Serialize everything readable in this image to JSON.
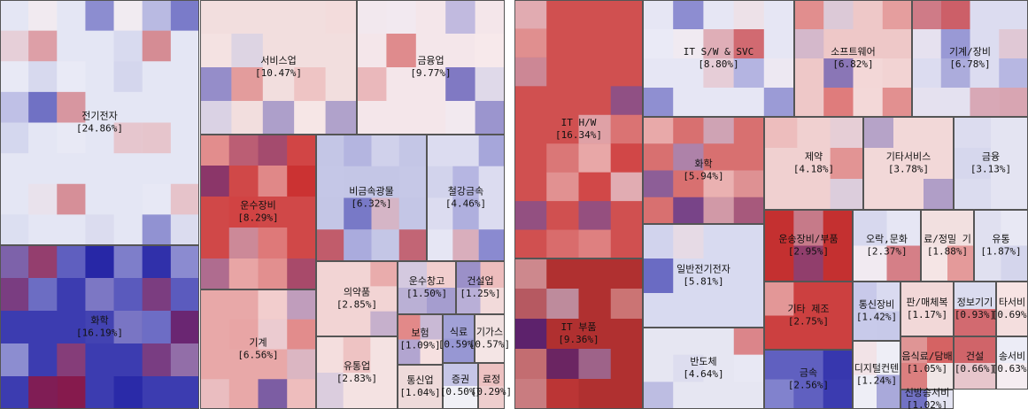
{
  "chart_data": [
    {
      "type": "treemap",
      "categories": [
        "전기전자",
        "화학",
        "서비스업",
        "금융업",
        "운수장비",
        "비금속광물",
        "철강금속",
        "기계",
        "의약품",
        "유통업",
        "운수창고",
        "건설업",
        "보험",
        "통신업",
        "식료",
        "기가스",
        "증권",
        "료정"
      ],
      "values": [
        24.86,
        16.19,
        10.47,
        9.77,
        8.29,
        6.32,
        4.46,
        6.56,
        2.85,
        2.83,
        1.5,
        1.25,
        1.09,
        1.04,
        0.59,
        0.57,
        0.5,
        0.29
      ],
      "value_labels": [
        "[24.86%]",
        "[16.19%]",
        "[10.47%]",
        "[9.77%]",
        "[8.29%]",
        "[6.32%]",
        "[4.46%]",
        "[6.56%]",
        "[2.85%]",
        "[2.83%]",
        "[1.50%]",
        "[1.25%]",
        "[1.09%]",
        "[1.04%]",
        "[0.59%]",
        "[0.57%]",
        "[0.50%]",
        "[0.29%]"
      ],
      "colors": [
        "#e4e6f4",
        "#3c3cb0",
        "#f2dede",
        "#f4e6ea",
        "#d04848",
        "#c4c6e6",
        "#dcdcf0",
        "#e8a8a8",
        "#f2d4d4",
        "#f4e2e2",
        "#f6e6e6",
        "#f2dada",
        "#f6e0e0",
        "#eedada",
        "#e8e8f2",
        "#f0e0e0",
        "#f0f0f6",
        "#f2e4e4"
      ]
    },
    {
      "type": "treemap",
      "categories": [
        "IT H/W",
        "IT 부품",
        "IT S/W & SVC",
        "소프트웨어",
        "기계/장비",
        "화학",
        "일반전기전자",
        "반도체",
        "제약",
        "기타서비스",
        "금융",
        "운송장비/부품",
        "오락,문화",
        "료/정밀 기",
        "유통",
        "기타 제조",
        "금속",
        "통신장비",
        "디지털컨텐",
        "판/매체복",
        "정보기기",
        "타서비",
        "음식료/담배",
        "건설",
        "송서비",
        "신방송서비"
      ],
      "values": [
        16.34,
        9.36,
        8.8,
        6.82,
        6.78,
        5.94,
        5.81,
        4.64,
        4.18,
        3.78,
        3.13,
        2.95,
        2.37,
        1.88,
        1.87,
        2.75,
        2.56,
        1.42,
        1.24,
        1.17,
        0.93,
        0.69,
        1.05,
        0.66,
        0.63,
        1.02
      ],
      "value_labels": [
        "[16.34%]",
        "[9.36%]",
        "[8.80%]",
        "[6.82%]",
        "[6.78%]",
        "[5.94%]",
        "[5.81%]",
        "[4.64%]",
        "[4.18%]",
        "[3.78%]",
        "[3.13%]",
        "[2.95%]",
        "[2.37%]",
        "[1.88%]",
        "[1.87%]",
        "[2.75%]",
        "[2.56%]",
        "[1.42%]",
        "[1.24%]",
        "[1.17%]",
        "[0.93%]",
        "[0.69%]",
        "[1.05%]",
        "[0.66%]",
        "[0.63%]",
        "[1.02%]"
      ],
      "colors": [
        "#d05050",
        "#b03030",
        "#e6e6f4",
        "#eec8c8",
        "#dcdcf0",
        "#d87070",
        "#d8daf0",
        "#e6e6f2",
        "#f0d0d0",
        "#f2d8d8",
        "#e4e4f2",
        "#c43030",
        "#e6e6f4",
        "#f2e0e0",
        "#e0e0f0",
        "#cc4040",
        "#6060c0",
        "#c8caea",
        "#eeeef6",
        "#f2d8d8",
        "#e8e8f4",
        "#f4dede",
        "#f0e6e6",
        "#e6e6f2",
        "#ececf6",
        "#e4e4f2"
      ]
    }
  ]
}
